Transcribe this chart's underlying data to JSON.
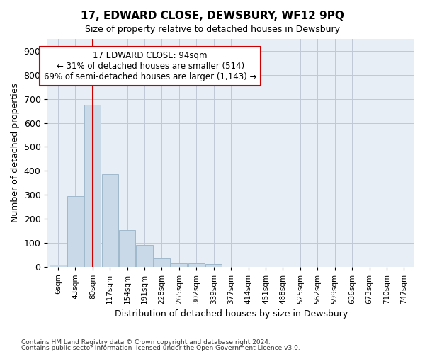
{
  "title": "17, EDWARD CLOSE, DEWSBURY, WF12 9PQ",
  "subtitle": "Size of property relative to detached houses in Dewsbury",
  "xlabel": "Distribution of detached houses by size in Dewsbury",
  "ylabel": "Number of detached properties",
  "bar_color": "#c9d9e8",
  "bar_edge_color": "#a0b8cc",
  "grid_color": "#c0c8d8",
  "background_color": "#e8eef5",
  "vline_color": "#cc0000",
  "vline_x": 2,
  "bar_heights": [
    7,
    295,
    675,
    385,
    152,
    90,
    35,
    14,
    13,
    10,
    0,
    0,
    0,
    0,
    0,
    0,
    0,
    0,
    0,
    0,
    0
  ],
  "categories": [
    "6sqm",
    "43sqm",
    "80sqm",
    "117sqm",
    "154sqm",
    "191sqm",
    "228sqm",
    "265sqm",
    "302sqm",
    "339sqm",
    "377sqm",
    "414sqm",
    "451sqm",
    "488sqm",
    "525sqm",
    "562sqm",
    "599sqm",
    "636sqm",
    "673sqm",
    "710sqm",
    "747sqm"
  ],
  "ylim": [
    0,
    950
  ],
  "yticks": [
    0,
    100,
    200,
    300,
    400,
    500,
    600,
    700,
    800,
    900
  ],
  "annotation_text": "17 EDWARD CLOSE: 94sqm\n← 31% of detached houses are smaller (514)\n69% of semi-detached houses are larger (1,143) →",
  "annotation_box_color": "white",
  "annotation_box_edge": "#cc0000",
  "footnote1": "Contains HM Land Registry data © Crown copyright and database right 2024.",
  "footnote2": "Contains public sector information licensed under the Open Government Licence v3.0."
}
